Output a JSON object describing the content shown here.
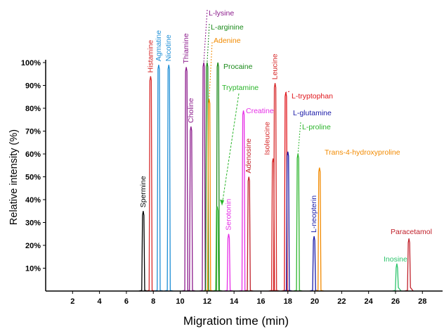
{
  "chart_data": {
    "type": "line",
    "xlabel": "Migration time (min)",
    "ylabel": "Relative intensity (%)",
    "xlim": [
      0,
      29.5
    ],
    "ylim": [
      0,
      100
    ],
    "x_ticks": [
      2,
      4,
      6,
      8,
      10,
      12,
      14,
      16,
      18,
      20,
      22,
      24,
      26,
      28
    ],
    "y_ticks": [
      10,
      20,
      30,
      40,
      50,
      60,
      70,
      80,
      90,
      100
    ],
    "y_tick_labels": [
      "10%",
      "20%",
      "30%",
      "40%",
      "50%",
      "60%",
      "70%",
      "80%",
      "90%",
      "100%"
    ],
    "grid": false,
    "peaks": [
      {
        "name": "Spermine",
        "x": 7.25,
        "y": 35,
        "color": "#000000"
      },
      {
        "name": "Histamine",
        "x": 7.8,
        "y": 94,
        "color": "#d62728"
      },
      {
        "name": "Agmatine",
        "x": 8.4,
        "y": 99,
        "color": "#1f8fd6"
      },
      {
        "name": "Nicotine",
        "x": 9.15,
        "y": 99,
        "color": "#1f8fd6"
      },
      {
        "name": "Thiamine",
        "x": 10.45,
        "y": 98,
        "color": "#8b1a8b"
      },
      {
        "name": "Choline",
        "x": 10.8,
        "y": 72,
        "color": "#8b1a8b"
      },
      {
        "name": "L-lysine",
        "x": 11.75,
        "y": 100,
        "color": "#8b1a8b"
      },
      {
        "name": "L-arginine",
        "x": 12.0,
        "y": 100,
        "color": "#1a8a1a"
      },
      {
        "name": "Adenine",
        "x": 12.15,
        "y": 84,
        "color": "#f28a00"
      },
      {
        "name": "Procaine",
        "x": 12.8,
        "y": 100,
        "color": "#1a8a1a"
      },
      {
        "name": "Tryptamine",
        "x": 12.75,
        "y": 37,
        "color": "#2bb52b"
      },
      {
        "name": "Serotonin",
        "x": 13.6,
        "y": 25,
        "color": "#e62ee6"
      },
      {
        "name": "Creatine",
        "x": 14.7,
        "y": 79,
        "color": "#e62ee6"
      },
      {
        "name": "Adenosine",
        "x": 15.1,
        "y": 50,
        "color": "#c0202a"
      },
      {
        "name": "Isoleucine",
        "x": 16.9,
        "y": 58,
        "color": "#d62728"
      },
      {
        "name": "Leucine",
        "x": 17.05,
        "y": 91,
        "color": "#d62728"
      },
      {
        "name": "L-tryptophan",
        "x": 17.85,
        "y": 87,
        "color": "#e0151b"
      },
      {
        "name": "L-glutamine",
        "x": 18.0,
        "y": 61,
        "color": "#1a1aa8"
      },
      {
        "name": "L-proline",
        "x": 18.75,
        "y": 60,
        "color": "#2bb52b"
      },
      {
        "name": "L-neopterin",
        "x": 19.95,
        "y": 24,
        "color": "#1a1aa8"
      },
      {
        "name": "Trans-4-hydroxyproline",
        "x": 20.35,
        "y": 54,
        "color": "#f28a00"
      },
      {
        "name": "Inosine",
        "x": 26.1,
        "y": 12,
        "color": "#2bc46b"
      },
      {
        "name": "Paracetamol",
        "x": 27.0,
        "y": 23,
        "color": "#c0202a"
      }
    ]
  }
}
